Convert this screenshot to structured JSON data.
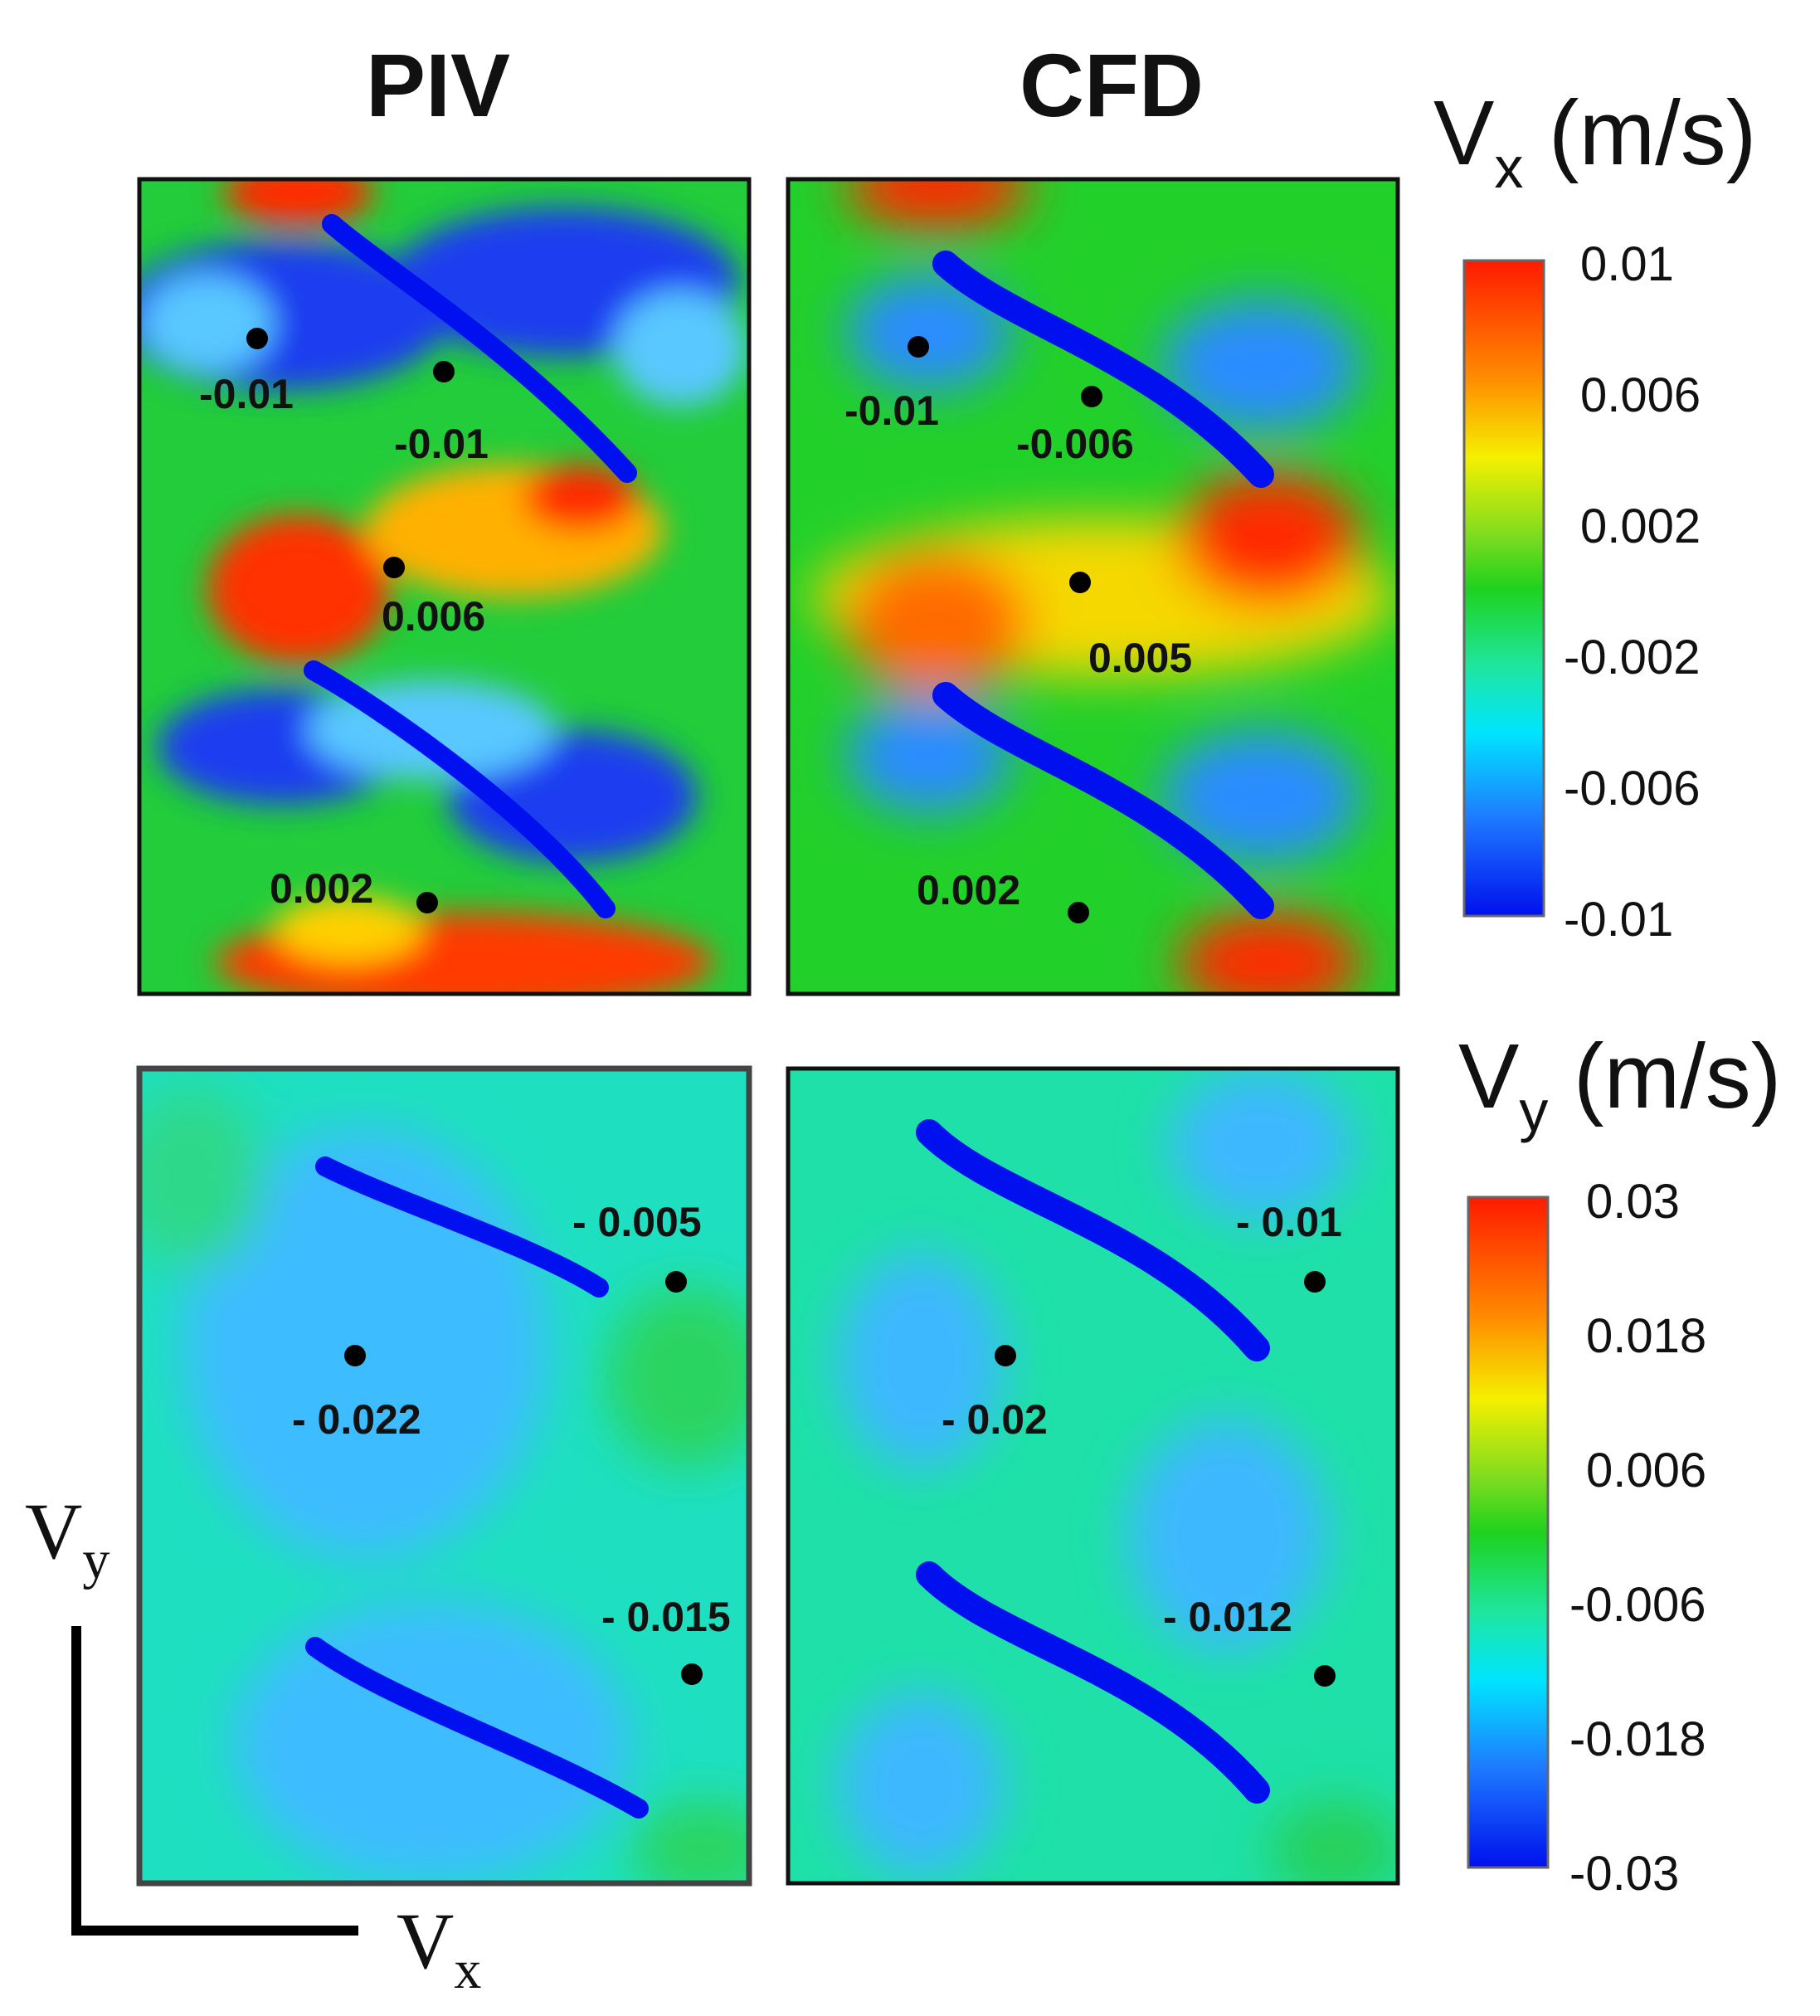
{
  "chart_data": {
    "type": "heatmap",
    "column_titles": [
      "PIV",
      "CFD"
    ],
    "colorbars": [
      {
        "title": "V",
        "subscript": "x",
        "unit": " (m/s)",
        "ticks": [
          "0.01",
          "0.006",
          "0.002",
          "-0.002",
          "-0.006",
          "-0.01"
        ],
        "range": [
          -0.01,
          0.01
        ]
      },
      {
        "title": "V",
        "subscript": "y",
        "unit": " (m/s)",
        "ticks": [
          "0.03",
          "0.018",
          "0.006",
          "-0.006",
          "-0.018",
          "-0.03"
        ],
        "range": [
          -0.03,
          0.03
        ]
      }
    ],
    "panels": [
      {
        "component": "Vx",
        "method": "PIV",
        "points": [
          {
            "label": "-0.01",
            "value": -0.01
          },
          {
            "label": "-0.01",
            "value": -0.01
          },
          {
            "label": "0.006",
            "value": 0.006
          },
          {
            "label": "0.002",
            "value": 0.002
          }
        ]
      },
      {
        "component": "Vx",
        "method": "CFD",
        "points": [
          {
            "label": "-0.01",
            "value": -0.01
          },
          {
            "label": "-0.006",
            "value": -0.006
          },
          {
            "label": "0.005",
            "value": 0.005
          },
          {
            "label": "0.002",
            "value": 0.002
          }
        ]
      },
      {
        "component": "Vy",
        "method": "PIV",
        "points": [
          {
            "label": "- 0.005",
            "value": -0.005
          },
          {
            "label": "- 0.022",
            "value": -0.022
          },
          {
            "label": "- 0.015",
            "value": -0.015
          }
        ]
      },
      {
        "component": "Vy",
        "method": "CFD",
        "points": [
          {
            "label": "- 0.01",
            "value": -0.01
          },
          {
            "label": "- 0.02",
            "value": -0.02
          },
          {
            "label": "- 0.012",
            "value": -0.012
          }
        ]
      }
    ],
    "axes_indicator": {
      "vertical": {
        "main": "V",
        "sub": "y"
      },
      "horizontal": {
        "main": "V",
        "sub": "x"
      }
    }
  }
}
